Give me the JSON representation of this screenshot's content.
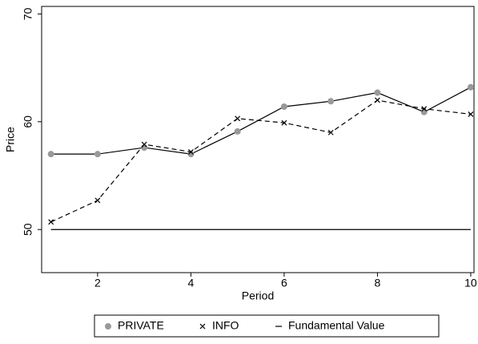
{
  "chart_data": {
    "type": "line",
    "x_label": "Period",
    "y_label": "Price",
    "x": [
      1,
      2,
      3,
      4,
      5,
      6,
      7,
      8,
      9,
      10
    ],
    "xlim": [
      0.8,
      10.07
    ],
    "xticks": [
      2,
      4,
      6,
      8,
      10
    ],
    "ylim": [
      46,
      70.7
    ],
    "yticks": [
      50,
      60,
      70
    ],
    "series": [
      {
        "name": "PRIVATE",
        "color": "#999999",
        "line_color": "#000000",
        "marker": "circle",
        "dash": "solid",
        "values": [
          57.0,
          57.0,
          57.6,
          57.0,
          59.1,
          61.4,
          61.9,
          62.7,
          60.9,
          63.2
        ]
      },
      {
        "name": "INFO",
        "color": "#000000",
        "line_color": "#000000",
        "marker": "x",
        "dash": "dashed",
        "values": [
          50.7,
          52.7,
          57.9,
          57.2,
          60.3,
          59.9,
          59.0,
          62.0,
          61.2,
          60.7
        ]
      },
      {
        "name": "Fundamental Value",
        "color": "#000000",
        "line_color": "#000000",
        "marker": "none",
        "dash": "solid",
        "values": [
          50,
          50,
          50,
          50,
          50,
          50,
          50,
          50,
          50,
          50
        ]
      }
    ]
  }
}
